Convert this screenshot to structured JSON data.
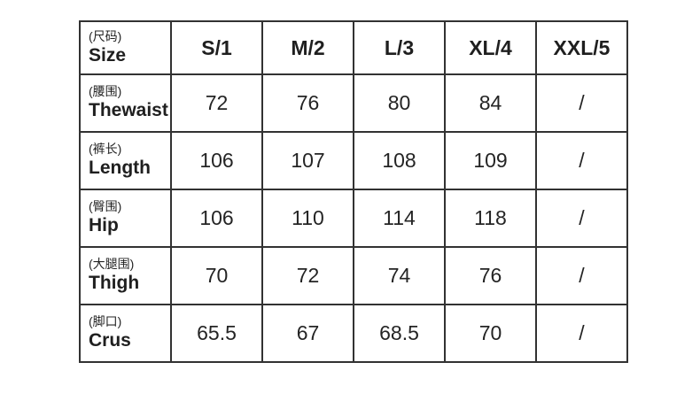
{
  "table": {
    "header": {
      "label_cn": "(尺码)",
      "label_en": "Size",
      "columns": [
        "S/1",
        "M/2",
        "L/3",
        "XL/4",
        "XXL/5"
      ]
    },
    "rows": [
      {
        "label_cn": "(腰围)",
        "label_en": "Thewaist",
        "values": [
          "72",
          "76",
          "80",
          "84",
          "/"
        ]
      },
      {
        "label_cn": "(裤长)",
        "label_en": "Length",
        "values": [
          "106",
          "107",
          "108",
          "109",
          "/"
        ]
      },
      {
        "label_cn": "(臀围)",
        "label_en": "Hip",
        "values": [
          "106",
          "110",
          "114",
          "118",
          "/"
        ]
      },
      {
        "label_cn": "(大腿围)",
        "label_en": "Thigh",
        "values": [
          "70",
          "72",
          "74",
          "76",
          "/"
        ]
      },
      {
        "label_cn": "(脚口)",
        "label_en": "Crus",
        "values": [
          "65.5",
          "67",
          "68.5",
          "70",
          "/"
        ]
      }
    ],
    "colors": {
      "border": "#323232",
      "text": "#1f1f1f",
      "background": "#ffffff"
    }
  },
  "chart_data": {
    "type": "table",
    "title": "",
    "columns": [
      "(尺码) Size",
      "S/1",
      "M/2",
      "L/3",
      "XL/4",
      "XXL/5"
    ],
    "rows": [
      [
        "(腰围) Thewaist",
        "72",
        "76",
        "80",
        "84",
        "/"
      ],
      [
        "(裤长) Length",
        "106",
        "107",
        "108",
        "109",
        "/"
      ],
      [
        "(臀围) Hip",
        "106",
        "110",
        "114",
        "118",
        "/"
      ],
      [
        "(大腿围) Thigh",
        "70",
        "72",
        "74",
        "76",
        "/"
      ],
      [
        "(脚口) Crus",
        "65.5",
        "67",
        "68.5",
        "70",
        "/"
      ]
    ]
  }
}
